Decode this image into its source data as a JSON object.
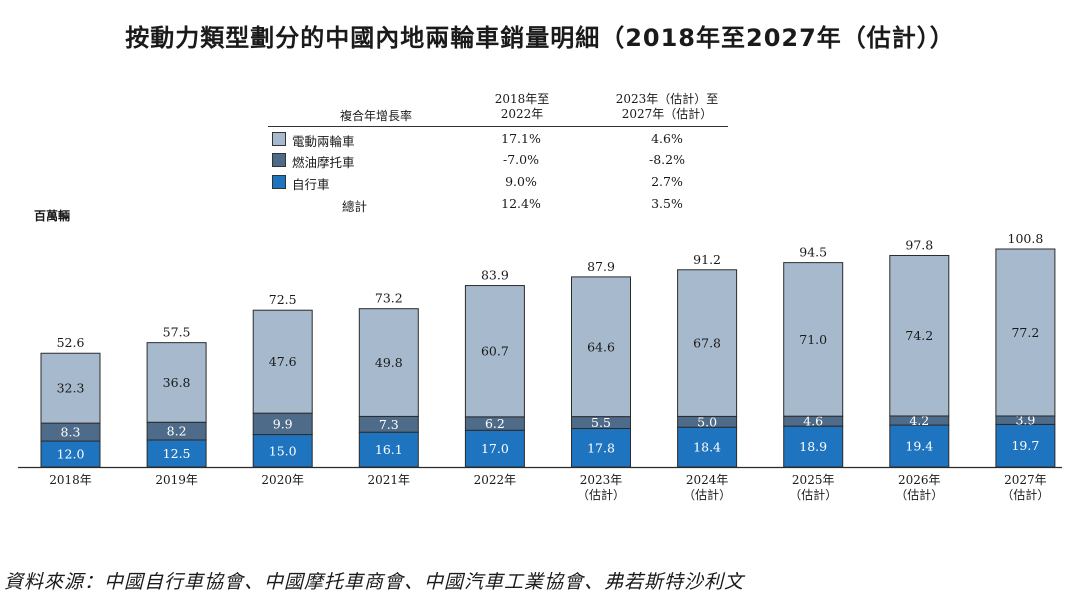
{
  "title": "按動力類型劃分的中國內地兩輪車銷量明細（2018年至2027年（估計））",
  "unit_label": "百萬輛",
  "source": "資料來源：中國自行車協會、中國摩托車商會、中國汽車工業協會、弗若斯特沙利文",
  "cagr_table": {
    "row_header": "複合年增長率",
    "col1_header": [
      "2018年至",
      "2022年"
    ],
    "col2_header": [
      "2023年（估計）至",
      "2027年（估計）"
    ],
    "rows": [
      {
        "label": "電動兩輪車",
        "color": "#a7bacd",
        "v1": "17.1%",
        "v2": "4.6%"
      },
      {
        "label": "燃油摩托車",
        "color": "#4f6b8a",
        "v1": "-7.0%",
        "v2": "-8.2%"
      },
      {
        "label": "自行車",
        "color": "#1f74bf",
        "v1": "9.0%",
        "v2": "2.7%"
      },
      {
        "label": "總計",
        "color": "",
        "v1": "12.4%",
        "v2": "3.5%"
      }
    ]
  },
  "chart_data": {
    "type": "bar",
    "stacked": true,
    "categories": [
      [
        "2018年"
      ],
      [
        "2019年"
      ],
      [
        "2020年"
      ],
      [
        "2021年"
      ],
      [
        "2022年"
      ],
      [
        "2023年",
        "（估計）"
      ],
      [
        "2024年",
        "（估計）"
      ],
      [
        "2025年",
        "（估計）"
      ],
      [
        "2026年",
        "（估計）"
      ],
      [
        "2027年",
        "（估計）"
      ]
    ],
    "series": [
      {
        "name": "自行車",
        "color": "#1f74bf",
        "values": [
          12.0,
          12.5,
          15.0,
          16.1,
          17.0,
          17.8,
          18.4,
          18.9,
          19.4,
          19.7
        ]
      },
      {
        "name": "燃油摩托車",
        "color": "#4f6b8a",
        "values": [
          8.3,
          8.2,
          9.9,
          7.3,
          6.2,
          5.5,
          5.0,
          4.6,
          4.2,
          3.9
        ]
      },
      {
        "name": "電動兩輪車",
        "color": "#a7bacd",
        "values": [
          32.3,
          36.8,
          47.6,
          49.8,
          60.7,
          64.6,
          67.8,
          71.0,
          74.2,
          77.2
        ]
      }
    ],
    "totals": [
      52.6,
      57.5,
      72.5,
      73.2,
      83.9,
      87.9,
      91.2,
      94.5,
      97.8,
      100.8
    ],
    "ylabel": "百萬輛",
    "ylim": [
      0,
      100.8
    ]
  }
}
